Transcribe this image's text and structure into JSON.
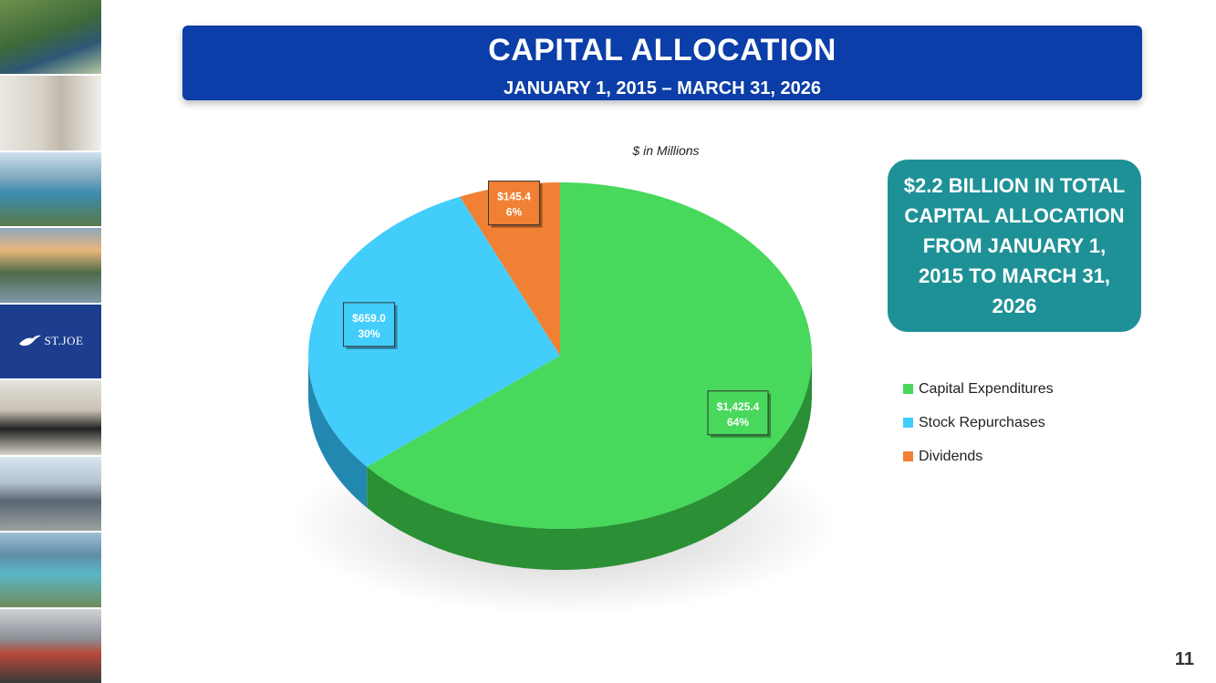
{
  "banner": {
    "title": "CAPITAL ALLOCATION",
    "subtitle": "JANUARY 1, 2015 – MARCH 31, 2026"
  },
  "units_note": "$ in Millions",
  "callout": {
    "text": "$2.2 BILLION IN TOTAL CAPITAL ALLOCATION FROM JANUARY 1, 2015 TO MARCH 31, 2026"
  },
  "logo": {
    "text": "ST.JOE"
  },
  "page_number": "11",
  "chart_data": {
    "type": "pie",
    "title": "",
    "style": "3d",
    "legend_position": "right",
    "slices": [
      {
        "name": "Capital Expenditures",
        "value": 1425.4,
        "percent": 64,
        "value_label": "$1,425.4",
        "percent_label": "64%",
        "color": "#48d85b",
        "side_color": "#2a8f35"
      },
      {
        "name": "Stock Repurchases",
        "value": 659.0,
        "percent": 30,
        "value_label": "$659.0",
        "percent_label": "30%",
        "color": "#43cdfb",
        "side_color": "#2388b0"
      },
      {
        "name": "Dividends",
        "value": 145.4,
        "percent": 6,
        "value_label": "$145.4",
        "percent_label": "6%",
        "color": "#f08033",
        "side_color": "#b2591d"
      }
    ]
  },
  "colors": {
    "banner_blue": "#0b3ea8",
    "callout_teal": "#1e9197",
    "logo_blue": "#1d3e8f"
  }
}
